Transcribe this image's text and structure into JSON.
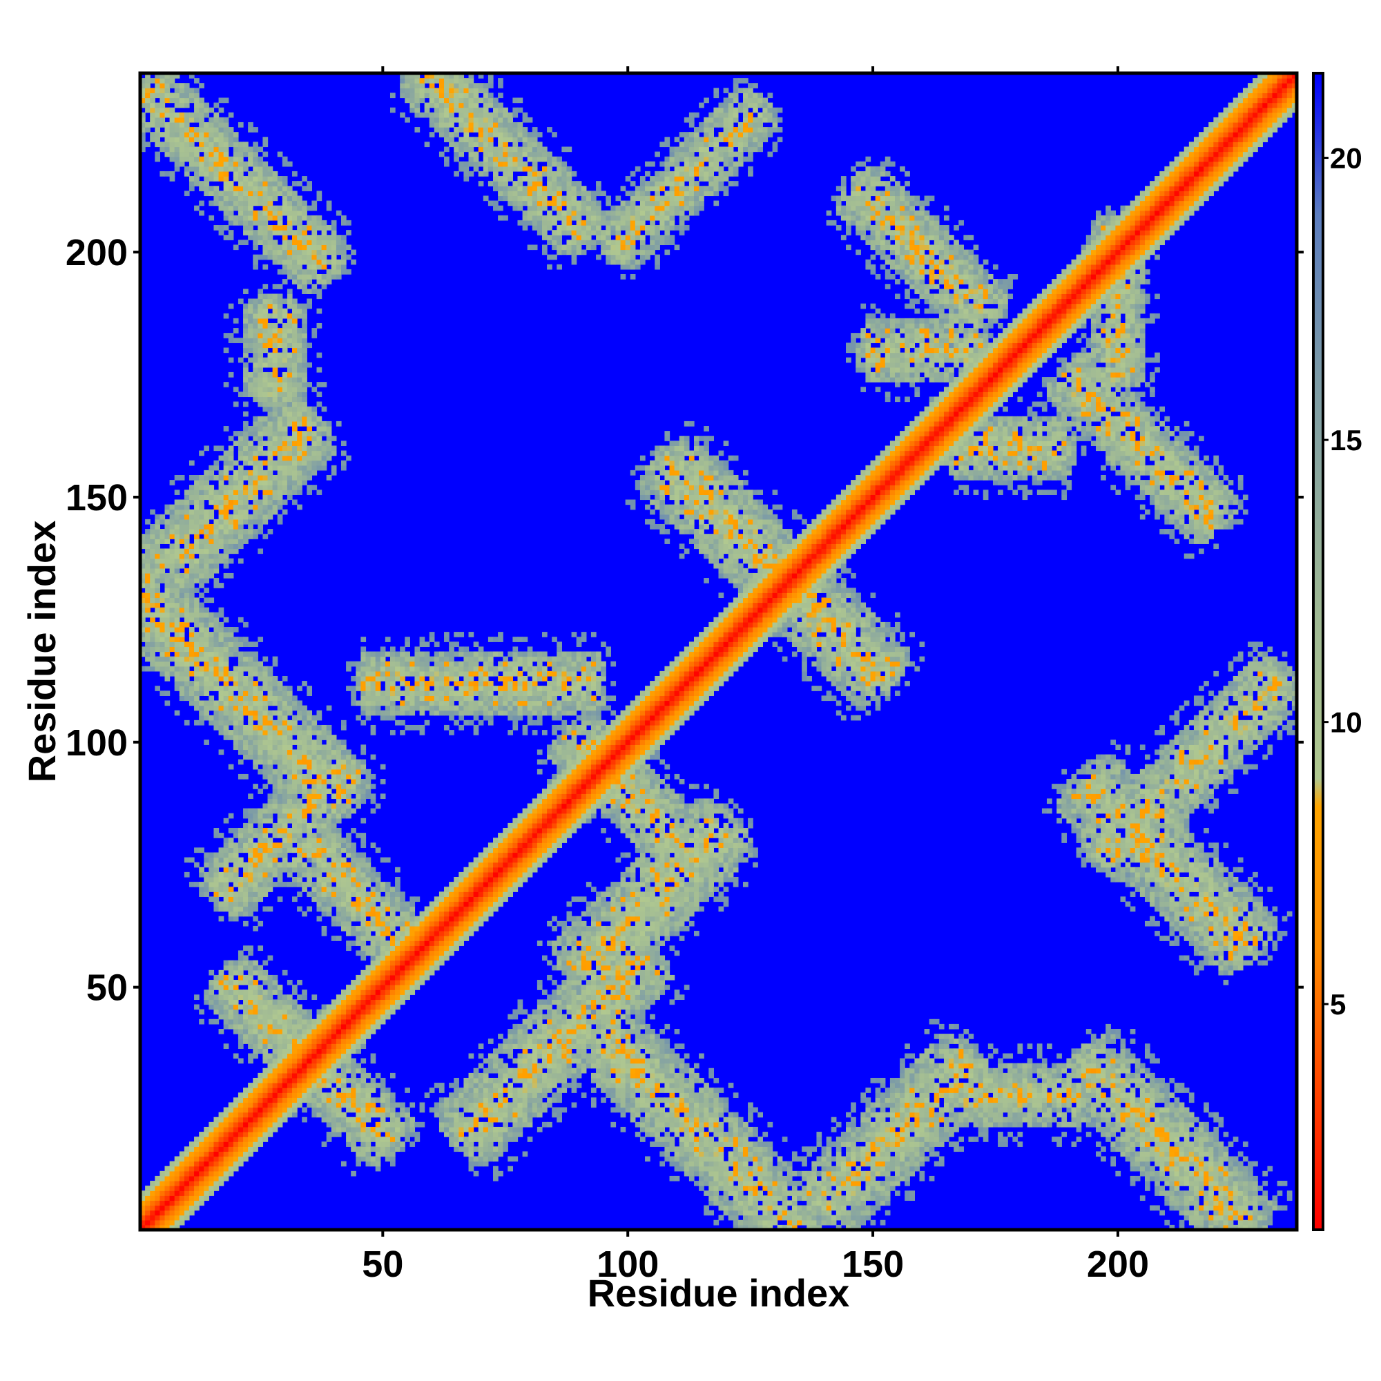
{
  "chart_data": {
    "type": "heatmap",
    "title": "",
    "xlabel": "Residue index",
    "ylabel": "Residue index",
    "xlim": [
      1,
      236
    ],
    "ylim": [
      1,
      236
    ],
    "xticks": [
      50,
      100,
      150,
      200
    ],
    "yticks": [
      50,
      100,
      150,
      200
    ],
    "xtick_labels": [
      "50",
      "100",
      "150",
      "200"
    ],
    "ytick_labels": [
      "50",
      "100",
      "150",
      "200"
    ],
    "colorbar": {
      "range": [
        1,
        21.5
      ],
      "ticks": [
        5,
        10,
        15,
        20
      ],
      "tick_labels": [
        "5",
        "10",
        "15",
        "20"
      ],
      "stops": [
        {
          "value": 1,
          "color": "#ff0000"
        },
        {
          "value": 3.5,
          "color": "#ff4500"
        },
        {
          "value": 6,
          "color": "#ff8c00"
        },
        {
          "value": 8.5,
          "color": "#ffa500"
        },
        {
          "value": 9,
          "color": "#b0c890"
        },
        {
          "value": 12,
          "color": "#9fb995"
        },
        {
          "value": 16,
          "color": "#7d9ca6"
        },
        {
          "value": 19,
          "color": "#5c7dbf"
        },
        {
          "value": 21.5,
          "color": "#0000ff"
        }
      ]
    },
    "grid": false,
    "diagonal_band": {
      "start": 1,
      "end": 236
    },
    "contact_bands": [
      {
        "cx": 20,
        "cy": 215,
        "angle": -45,
        "length": 50,
        "width": 12
      },
      {
        "cx": 75,
        "cy": 220,
        "angle": -45,
        "length": 45,
        "width": 12
      },
      {
        "cx": 112,
        "cy": 215,
        "angle": 45,
        "length": 40,
        "width": 10
      },
      {
        "cx": 28,
        "cy": 180,
        "angle": 90,
        "length": 16,
        "width": 12
      },
      {
        "cx": 20,
        "cy": 150,
        "angle": 45,
        "length": 40,
        "width": 14
      },
      {
        "cx": 20,
        "cy": 110,
        "angle": -45,
        "length": 60,
        "width": 14
      },
      {
        "cx": 70,
        "cy": 112,
        "angle": 0,
        "length": 45,
        "width": 12
      },
      {
        "cx": 100,
        "cy": 90,
        "angle": -45,
        "length": 30,
        "width": 12
      },
      {
        "cx": 30,
        "cy": 82,
        "angle": 45,
        "length": 35,
        "width": 12
      },
      {
        "cx": 45,
        "cy": 68,
        "angle": -45,
        "length": 30,
        "width": 12
      },
      {
        "cx": 105,
        "cy": 68,
        "angle": 45,
        "length": 40,
        "width": 14
      },
      {
        "cx": 35,
        "cy": 35,
        "angle": -45,
        "length": 45,
        "width": 12
      },
      {
        "cx": 85,
        "cy": 38,
        "angle": 45,
        "length": 50,
        "width": 14
      },
      {
        "cx": 115,
        "cy": 20,
        "angle": -45,
        "length": 55,
        "width": 14
      },
      {
        "cx": 155,
        "cy": 20,
        "angle": 45,
        "length": 40,
        "width": 14
      },
      {
        "cx": 180,
        "cy": 28,
        "angle": 0,
        "length": 22,
        "width": 12
      },
      {
        "cx": 210,
        "cy": 18,
        "angle": -45,
        "length": 45,
        "width": 14
      },
      {
        "cx": 130,
        "cy": 135,
        "angle": -45,
        "length": 60,
        "width": 14
      },
      {
        "cx": 160,
        "cy": 200,
        "angle": -45,
        "length": 35,
        "width": 12
      },
      {
        "cx": 160,
        "cy": 180,
        "angle": 0,
        "length": 20,
        "width": 12
      },
      {
        "cx": 178,
        "cy": 160,
        "angle": 0,
        "length": 20,
        "width": 12
      },
      {
        "cx": 205,
        "cy": 160,
        "angle": -45,
        "length": 40,
        "width": 12
      },
      {
        "cx": 215,
        "cy": 95,
        "angle": 45,
        "length": 50,
        "width": 12
      },
      {
        "cx": 210,
        "cy": 75,
        "angle": -45,
        "length": 45,
        "width": 14
      },
      {
        "cx": 200,
        "cy": 190,
        "angle": 90,
        "length": 30,
        "width": 10
      }
    ]
  }
}
